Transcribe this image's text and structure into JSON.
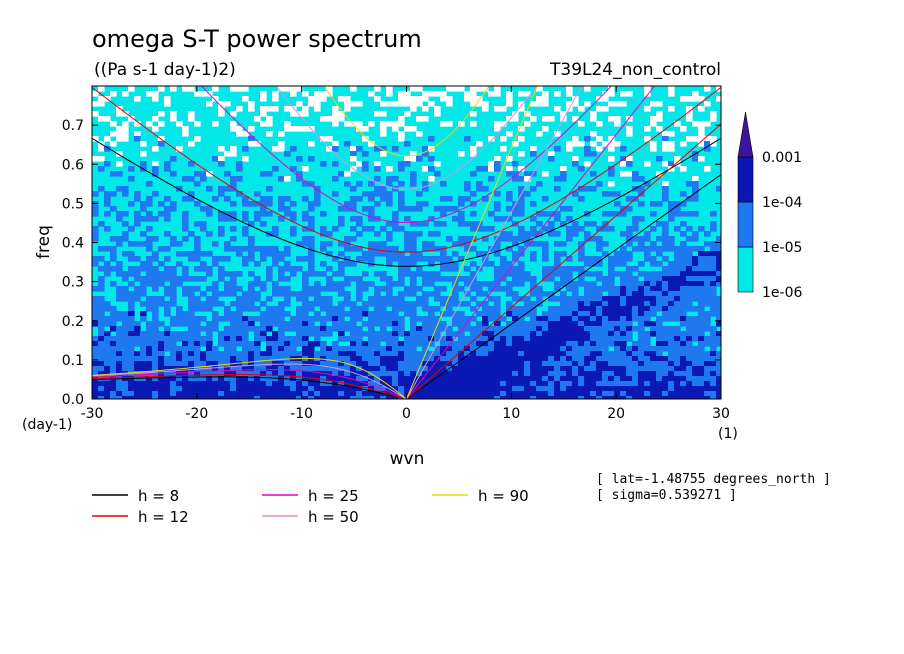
{
  "chart_data": {
    "type": "heatmap",
    "title": "omega S-T power spectrum",
    "subtitle": "((Pa s-1 day-1)2)",
    "run_label": "T39L24_non_control",
    "xlabel": "wvn",
    "ylabel": "freq",
    "x_unit": "(1)",
    "y_unit": "(day-1)",
    "xlim": [
      -30,
      30
    ],
    "ylim": [
      0,
      0.8
    ],
    "x_ticks": [
      -30,
      -20,
      -10,
      0,
      10,
      20,
      30
    ],
    "x_tick_labels": [
      "-30",
      "-20",
      "-10",
      "0",
      "10",
      "20",
      "30"
    ],
    "y_ticks": [
      0,
      0.1,
      0.2,
      0.3,
      0.4,
      0.5,
      0.6,
      0.7
    ],
    "y_tick_labels": [
      "0.0",
      "0.1",
      "0.2",
      "0.3",
      "0.4",
      "0.5",
      "0.6",
      "0.7"
    ],
    "colorbar": {
      "levels": [
        "1e-06",
        "1e-05",
        "1e-04",
        "0.001"
      ],
      "colors": [
        "#ffffff",
        "#00e8e8",
        "#1e78f0",
        "#0a18b4",
        "#3c14a0"
      ]
    },
    "info_lines": [
      "[ lat=-1.48755 degrees_north ]",
      "[ sigma=0.539271 ]"
    ],
    "series": [
      {
        "name": "h =  8",
        "color": "#000000",
        "equivalent_depth": 8
      },
      {
        "name": "h = 12",
        "color": "#e60000",
        "equivalent_depth": 12
      },
      {
        "name": "h = 25",
        "color": "#e600c8",
        "equivalent_depth": 25
      },
      {
        "name": "h = 50",
        "color": "#d296e6",
        "equivalent_depth": 50
      },
      {
        "name": "h = 90",
        "color": "#e6dc00",
        "equivalent_depth": 90
      }
    ],
    "grid": false,
    "legend_position": "bottom-left"
  }
}
